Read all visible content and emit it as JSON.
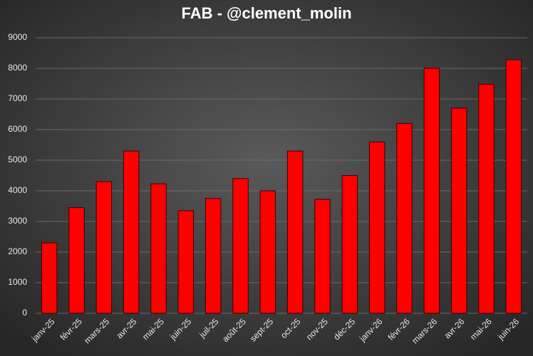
{
  "chart_data": {
    "type": "bar",
    "title": "FAB - @clement_molin",
    "categories": [
      "janv-25",
      "févr-25",
      "mars-25",
      "avr-25",
      "mai-25",
      "juin-25",
      "juil-25",
      "août-25",
      "sept-25",
      "oct-25",
      "nov-25",
      "déc-25",
      "janv-26",
      "févr-26",
      "mars-26",
      "avr-26",
      "mai-26",
      "juin-26"
    ],
    "values": [
      2300,
      3450,
      4300,
      5300,
      4230,
      3350,
      3750,
      4400,
      4000,
      5300,
      3720,
      4500,
      5600,
      6200,
      8000,
      6700,
      7480,
      8280
    ],
    "color": "#ff0000",
    "ylim": [
      0,
      9000
    ],
    "yticks": [
      0,
      1000,
      2000,
      3000,
      4000,
      5000,
      6000,
      7000,
      8000,
      9000
    ],
    "grid": true
  }
}
